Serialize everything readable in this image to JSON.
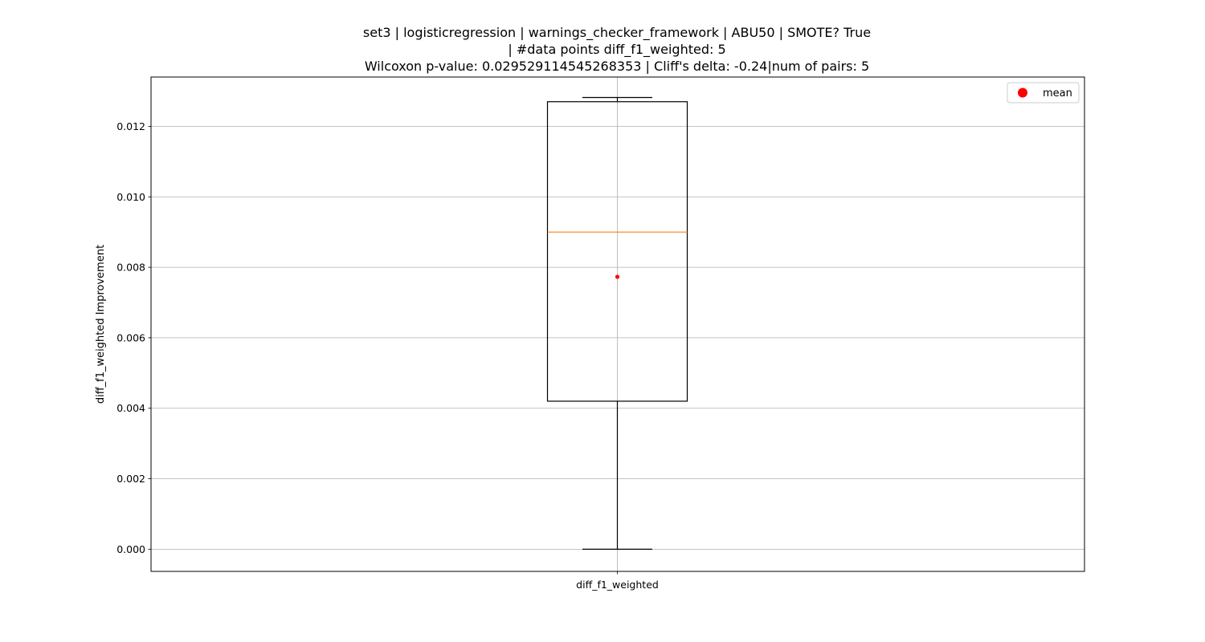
{
  "chart_data": {
    "type": "box",
    "title_lines": [
      "set3 | logisticregression | warnings_checker_framework | ABU50 | SMOTE? True",
      "| #data points diff_f1_weighted: 5",
      "Wilcoxon p-value: 0.029529114545268353 | Cliff's delta: -0.24|num of pairs: 5"
    ],
    "xlabel": "",
    "ylabel": "diff_f1_weighted Improvement",
    "categories": [
      "diff_f1_weighted"
    ],
    "ylim": [
      -0.00063,
      0.0134
    ],
    "yticks": [
      0.0,
      0.002,
      0.004,
      0.006,
      0.008,
      0.01,
      0.012
    ],
    "ytick_labels": [
      "0.000",
      "0.002",
      "0.004",
      "0.006",
      "0.008",
      "0.010",
      "0.012"
    ],
    "grid": true,
    "box": {
      "whisker_low": 0.0,
      "q1": 0.0042,
      "median": 0.009,
      "q3": 0.0127,
      "whisker_high": 0.01282,
      "mean": 0.00773
    },
    "legend": {
      "position": "top-right",
      "entries": [
        {
          "label": "mean",
          "color": "#ff0000",
          "marker": "circle"
        }
      ]
    },
    "colors": {
      "box": "#000000",
      "median": "#ff7f0e",
      "mean": "#ff0000",
      "grid": "#b0b0b0"
    }
  }
}
